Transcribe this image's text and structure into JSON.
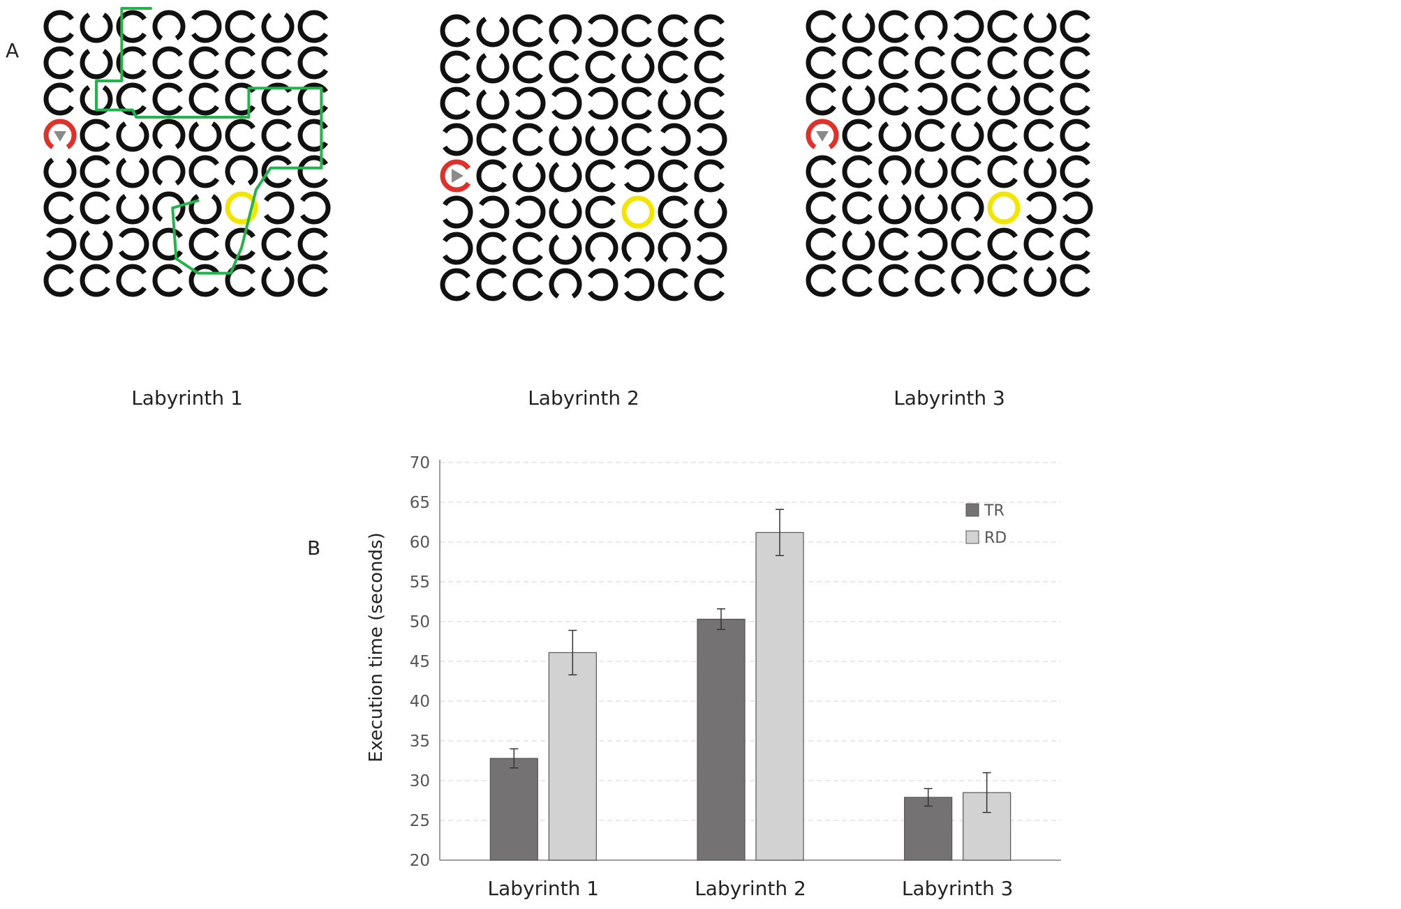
{
  "panels": {
    "a_label": "A",
    "b_label": "B"
  },
  "mazes": [
    {
      "caption": "Labyrinth 1",
      "start": {
        "row": 3,
        "col": 0,
        "arrow": "down"
      },
      "goal": {
        "row": 5,
        "col": 5
      },
      "openings": [
        [
          "E",
          "N",
          "E",
          "S",
          "W",
          "E",
          "N",
          "E"
        ],
        [
          "E",
          "N",
          "E",
          "E",
          "E",
          "E",
          "E",
          "E"
        ],
        [
          "E",
          "N",
          "E",
          "E",
          "E",
          "E",
          "E",
          "E"
        ],
        [
          "S",
          "E",
          "N",
          "S",
          "N",
          "E",
          "E",
          "E"
        ],
        [
          "N",
          "E",
          "N",
          "S",
          "E",
          "S",
          "E",
          "E"
        ],
        [
          "E",
          "E",
          "N",
          "S",
          "N",
          "E",
          "W",
          "W"
        ],
        [
          "W",
          "N",
          "W",
          "E",
          "E",
          "E",
          "E",
          "E"
        ],
        [
          "E",
          "E",
          "E",
          "E",
          "E",
          "E",
          "N",
          "E"
        ]
      ],
      "path": [
        [
          0,
          3
        ],
        [
          0,
          2.2
        ],
        [
          2,
          2.2
        ],
        [
          2,
          1.5
        ],
        [
          2.8,
          1.5
        ],
        [
          2.8,
          2.5
        ],
        [
          3,
          2.6
        ],
        [
          3,
          5.7
        ],
        [
          2.2,
          5.7
        ],
        [
          2.2,
          7.7
        ],
        [
          4.4,
          7.7
        ],
        [
          4.4,
          6.3
        ],
        [
          5,
          5.9
        ],
        [
          6.6,
          5.5
        ],
        [
          7.3,
          5.2
        ],
        [
          7.3,
          4.3
        ],
        [
          6.9,
          3.7
        ],
        [
          5.5,
          3.6
        ],
        [
          5.3,
          4.3
        ]
      ]
    },
    {
      "caption": "Labyrinth 2",
      "start": {
        "row": 4,
        "col": 0,
        "arrow": "right"
      },
      "goal": {
        "row": 5,
        "col": 5
      },
      "openings": [
        [
          "E",
          "N",
          "E",
          "S",
          "W",
          "E",
          "E",
          "E"
        ],
        [
          "E",
          "N",
          "E",
          "E",
          "E",
          "N",
          "E",
          "E"
        ],
        [
          "E",
          "N",
          "W",
          "W",
          "W",
          "E",
          "N",
          "E"
        ],
        [
          "W",
          "E",
          "E",
          "N",
          "N",
          "E",
          "W",
          "W"
        ],
        [
          "E",
          "E",
          "N",
          "N",
          "E",
          "W",
          "E",
          "E"
        ],
        [
          "W",
          "W",
          "W",
          "N",
          "E",
          "E",
          "E",
          "N"
        ],
        [
          "W",
          "E",
          "E",
          "N",
          "S",
          "S",
          "S",
          "W"
        ],
        [
          "E",
          "E",
          "E",
          "S",
          "W",
          "W",
          "E",
          "E"
        ]
      ],
      "path": []
    },
    {
      "caption": "Labyrinth 3",
      "start": {
        "row": 3,
        "col": 0,
        "arrow": "down"
      },
      "goal": {
        "row": 5,
        "col": 5
      },
      "openings": [
        [
          "E",
          "N",
          "E",
          "S",
          "W",
          "E",
          "N",
          "E"
        ],
        [
          "E",
          "E",
          "E",
          "E",
          "E",
          "E",
          "E",
          "E"
        ],
        [
          "E",
          "N",
          "E",
          "W",
          "E",
          "N",
          "E",
          "E"
        ],
        [
          "S",
          "E",
          "N",
          "E",
          "N",
          "E",
          "E",
          "E"
        ],
        [
          "E",
          "E",
          "S",
          "N",
          "E",
          "E",
          "N",
          "E"
        ],
        [
          "E",
          "E",
          "N",
          "N",
          "S",
          "E",
          "W",
          "W"
        ],
        [
          "E",
          "N",
          "E",
          "W",
          "E",
          "E",
          "E",
          "E"
        ],
        [
          "E",
          "E",
          "E",
          "E",
          "S",
          "E",
          "N",
          "E"
        ]
      ],
      "path": []
    }
  ],
  "colors": {
    "ring": "#111111",
    "start_ring": "#e0302a",
    "goal_ring": "#f2e600",
    "path": "#22b44b",
    "arrow": "#8a8a8a",
    "TR": "#747272",
    "RD": "#d2d2d2"
  },
  "chart_data": {
    "type": "bar",
    "categories": [
      "Labyrinth 1",
      "Labyrinth 2",
      "Labyrinth 3"
    ],
    "series": [
      {
        "name": "TR",
        "values": [
          32.8,
          50.3,
          27.9
        ],
        "errors": [
          1.2,
          1.3,
          1.1
        ]
      },
      {
        "name": "RD",
        "values": [
          46.1,
          61.2,
          28.5
        ],
        "errors": [
          2.8,
          2.9,
          2.5
        ]
      }
    ],
    "title": "",
    "xlabel": "",
    "ylabel": "Execution time (seconds)",
    "ylim": [
      20,
      70
    ],
    "yticks": [
      20,
      25,
      30,
      35,
      40,
      45,
      50,
      55,
      60,
      65,
      70
    ],
    "grid": true,
    "legend": "top-right"
  }
}
